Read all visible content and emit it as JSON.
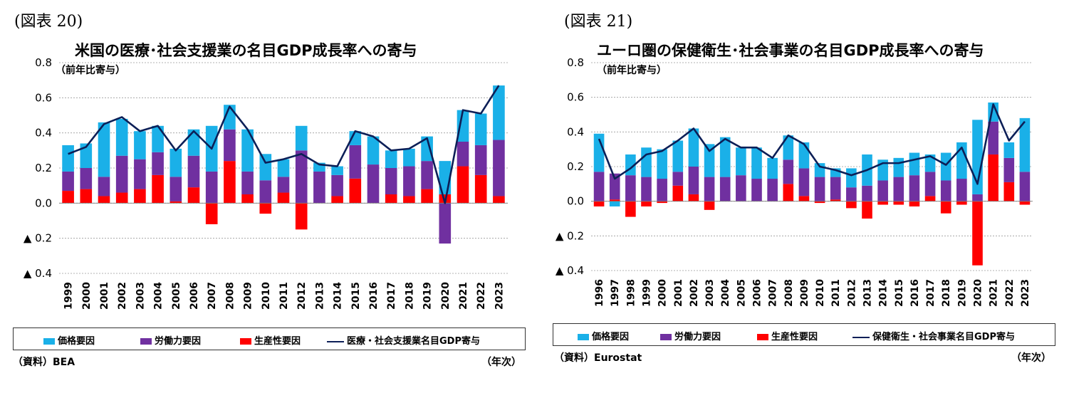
{
  "colors": {
    "price": "#1ab0e8",
    "labor": "#7030a0",
    "productivity": "#ff0000",
    "line": "#0c1f57",
    "grid": "#9a9a9a"
  },
  "left": {
    "fig_label": "(図表 20)",
    "title": "米国の医療･社会支援業の名目GDP成長率への寄与",
    "unit": "（前年比寄与）",
    "source": "（資料）BEA",
    "year_unit": "（年次）",
    "legend": {
      "price": "価格要因",
      "labor": "労働力要因",
      "productivity": "生産性要因",
      "line": "医療・社会支援業名目GDP寄与"
    }
  },
  "right": {
    "fig_label": "(図表 21)",
    "title": "ユーロ圏の保健衛生･社会事業の名目GDP成長率への寄与",
    "unit": "（前年比寄与）",
    "source": "（資料）Eurostat",
    "year_unit": "（年次）",
    "legend": {
      "price": "価格要因",
      "labor": "労働力要因",
      "productivity": "生産性要因",
      "line": "保健衛生・社会事業名目GDP寄与"
    }
  },
  "chart_data": [
    {
      "type": "bar",
      "stacked": true,
      "title": "米国の医療･社会支援業の名目GDP成長率への寄与",
      "ylabel": "（前年比寄与）",
      "ylim": [
        -0.4,
        0.8
      ],
      "yticks": [
        0.8,
        0.6,
        0.4,
        0.2,
        0.0,
        -0.2,
        -0.4
      ],
      "ytick_labels": [
        "0.8",
        "0.6",
        "0.4",
        "0.2",
        "0.0",
        "▲ 0.2",
        "▲ 0.4"
      ],
      "grid": true,
      "legend_position": "bottom",
      "categories": [
        "1999",
        "2000",
        "2001",
        "2002",
        "2003",
        "2004",
        "2005",
        "2006",
        "2007",
        "2008",
        "2009",
        "2010",
        "2011",
        "2012",
        "2013",
        "2014",
        "2015",
        "2016",
        "2017",
        "2018",
        "2019",
        "2020",
        "2021",
        "2022",
        "2023"
      ],
      "series": [
        {
          "name": "生産性要因",
          "kind": "bar",
          "values": [
            0.07,
            0.08,
            0.04,
            0.06,
            0.08,
            0.16,
            0.01,
            0.09,
            -0.12,
            0.24,
            0.05,
            -0.06,
            0.06,
            -0.15,
            0.0,
            0.04,
            0.14,
            0.0,
            0.05,
            0.04,
            0.08,
            0.05,
            0.21,
            0.16,
            0.04
          ]
        },
        {
          "name": "労働力要因",
          "kind": "bar",
          "values": [
            0.11,
            0.12,
            0.11,
            0.21,
            0.17,
            0.13,
            0.14,
            0.18,
            0.18,
            0.18,
            0.13,
            0.13,
            0.09,
            0.3,
            0.18,
            0.12,
            0.19,
            0.22,
            0.15,
            0.17,
            0.16,
            -0.23,
            0.14,
            0.17,
            0.32
          ]
        },
        {
          "name": "価格要因",
          "kind": "bar",
          "values": [
            0.15,
            0.14,
            0.31,
            0.21,
            0.16,
            0.15,
            0.16,
            0.15,
            0.26,
            0.14,
            0.24,
            0.15,
            0.1,
            0.14,
            0.05,
            0.05,
            0.08,
            0.16,
            0.1,
            0.1,
            0.14,
            0.19,
            0.18,
            0.18,
            0.31
          ]
        },
        {
          "name": "医療・社会支援業名目GDP寄与",
          "kind": "line",
          "values": [
            0.28,
            0.32,
            0.45,
            0.49,
            0.41,
            0.44,
            0.3,
            0.41,
            0.31,
            0.55,
            0.42,
            0.23,
            0.25,
            0.28,
            0.22,
            0.21,
            0.41,
            0.38,
            0.3,
            0.31,
            0.37,
            0.0,
            0.53,
            0.51,
            0.67
          ]
        }
      ]
    },
    {
      "type": "bar",
      "stacked": true,
      "title": "ユーロ圏の保健衛生･社会事業の名目GDP成長率への寄与",
      "ylabel": "（前年比寄与）",
      "ylim": [
        -0.4,
        0.8
      ],
      "yticks": [
        0.8,
        0.6,
        0.4,
        0.2,
        0.0,
        -0.2,
        -0.4
      ],
      "ytick_labels": [
        "0.8",
        "0.6",
        "0.4",
        "0.2",
        "0.0",
        "▲ 0.2",
        "▲ 0.4"
      ],
      "grid": true,
      "legend_position": "bottom",
      "categories": [
        "1996",
        "1997",
        "1998",
        "1999",
        "2000",
        "2001",
        "2002",
        "2003",
        "2004",
        "2005",
        "2006",
        "2007",
        "2008",
        "2009",
        "2010",
        "2011",
        "2012",
        "2013",
        "2014",
        "2015",
        "2016",
        "2017",
        "2018",
        "2019",
        "2020",
        "2021",
        "2022",
        "2023"
      ],
      "series": [
        {
          "name": "生産性要因",
          "kind": "bar",
          "values": [
            -0.03,
            0.01,
            -0.09,
            -0.03,
            -0.01,
            0.09,
            0.04,
            -0.05,
            0.0,
            0.0,
            0.0,
            0.0,
            0.1,
            0.03,
            -0.01,
            0.01,
            -0.04,
            -0.1,
            -0.02,
            -0.02,
            -0.03,
            0.03,
            -0.07,
            -0.02,
            -0.37,
            0.27,
            0.11,
            -0.02
          ]
        },
        {
          "name": "労働力要因",
          "kind": "bar",
          "values": [
            0.17,
            0.15,
            0.15,
            0.14,
            0.13,
            0.08,
            0.16,
            0.14,
            0.14,
            0.15,
            0.13,
            0.13,
            0.14,
            0.16,
            0.14,
            0.13,
            0.08,
            0.09,
            0.12,
            0.14,
            0.15,
            0.14,
            0.12,
            0.13,
            0.04,
            0.19,
            0.14,
            0.17
          ]
        },
        {
          "name": "価格要因",
          "kind": "bar",
          "values": [
            0.22,
            -0.03,
            0.12,
            0.17,
            0.17,
            0.18,
            0.22,
            0.19,
            0.23,
            0.16,
            0.18,
            0.12,
            0.14,
            0.15,
            0.08,
            0.05,
            0.11,
            0.18,
            0.12,
            0.11,
            0.13,
            0.1,
            0.16,
            0.21,
            0.43,
            0.11,
            0.09,
            0.31
          ]
        },
        {
          "name": "保健衛生・社会事業名目GDP寄与",
          "kind": "line",
          "values": [
            0.36,
            0.13,
            0.19,
            0.27,
            0.29,
            0.35,
            0.42,
            0.29,
            0.36,
            0.31,
            0.31,
            0.25,
            0.38,
            0.33,
            0.2,
            0.18,
            0.15,
            0.18,
            0.22,
            0.22,
            0.24,
            0.26,
            0.21,
            0.31,
            0.1,
            0.56,
            0.35,
            0.46
          ]
        }
      ]
    }
  ]
}
